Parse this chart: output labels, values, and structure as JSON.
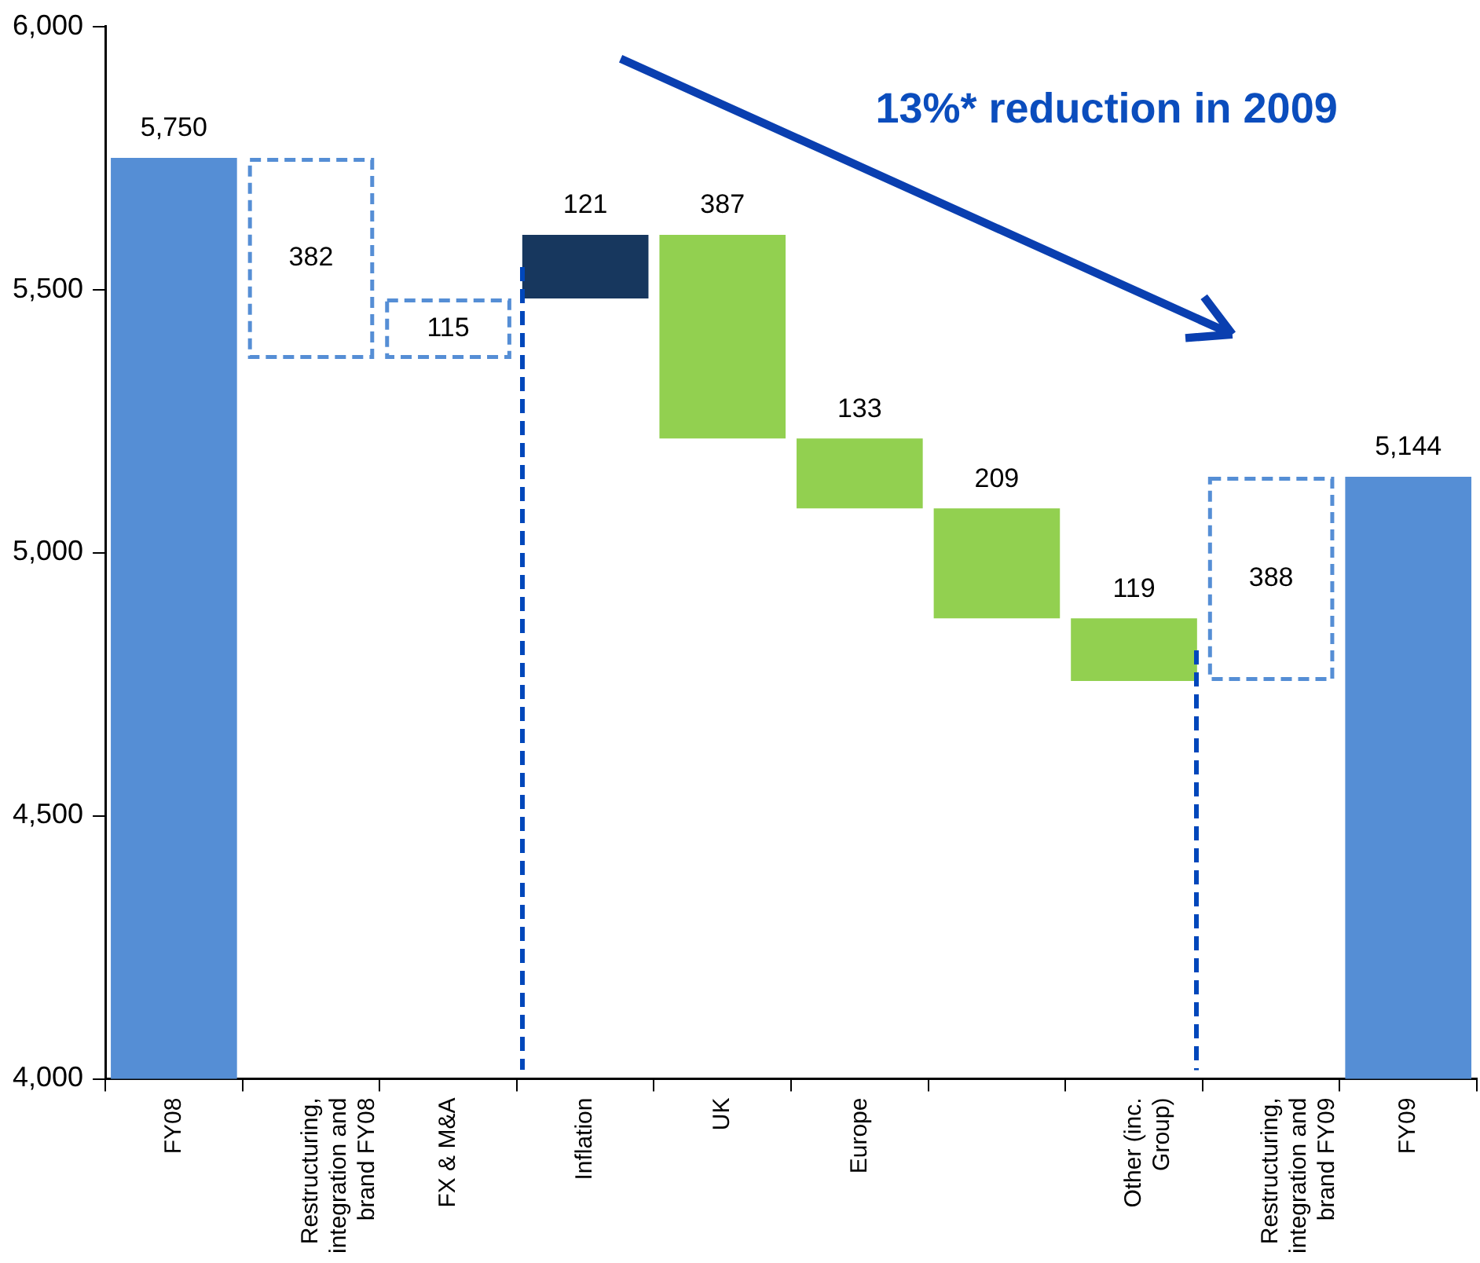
{
  "chart_data": {
    "type": "bar",
    "categories": [
      "FY08",
      "Restructuring, integration and brand FY08",
      "FX & M&A",
      "Inflation",
      "UK",
      "Europe",
      null,
      "Other (inc. Group)",
      "Restructuring, integration and brand FY09",
      "FY09"
    ],
    "series": [
      {
        "color": "#558ed5",
        "values": [
          5750,
          null,
          null,
          null,
          null,
          null,
          null,
          null,
          null,
          5144
        ],
        "value_labels": [
          "5,750",
          null,
          null,
          null,
          null,
          null,
          null,
          null,
          null,
          "5,144"
        ]
      },
      {
        "color": "#558ed5",
        "line_style": "dashed",
        "base": [
          null,
          5368,
          5368,
          null,
          null,
          null,
          null,
          null,
          4756,
          null
        ],
        "values": [
          null,
          382,
          115,
          null,
          null,
          null,
          null,
          null,
          388,
          null
        ],
        "value_labels": [
          null,
          "382",
          "115",
          null,
          null,
          null,
          null,
          null,
          "388",
          null
        ]
      },
      {
        "color": "#17375e",
        "base": [
          null,
          null,
          null,
          5483,
          null,
          null,
          null,
          null,
          null,
          null
        ],
        "values": [
          null,
          null,
          null,
          121,
          null,
          null,
          null,
          null,
          null,
          null
        ],
        "value_labels": [
          null,
          null,
          null,
          "121",
          null,
          null,
          null,
          null,
          null,
          null
        ]
      },
      {
        "color": "#92d050",
        "base": [
          null,
          null,
          null,
          null,
          5217,
          5084,
          4875,
          4756,
          null,
          null
        ],
        "values": [
          null,
          null,
          null,
          null,
          387,
          133,
          209,
          119,
          null,
          null
        ],
        "value_labels": [
          null,
          null,
          null,
          null,
          "387",
          "133",
          "209",
          "119",
          null,
          null
        ]
      }
    ],
    "ylim": [
      4000,
      6000
    ],
    "yticks": [
      {
        "value": 4000,
        "label": "4,000"
      },
      {
        "value": 4500,
        "label": "4,500"
      },
      {
        "value": 5000,
        "label": "5,000"
      },
      {
        "value": 5500,
        "label": "5,500"
      },
      {
        "value": 6000,
        "label": "6,000"
      }
    ],
    "grid": false,
    "annotations": [
      "13%* reduction in 2009"
    ]
  }
}
